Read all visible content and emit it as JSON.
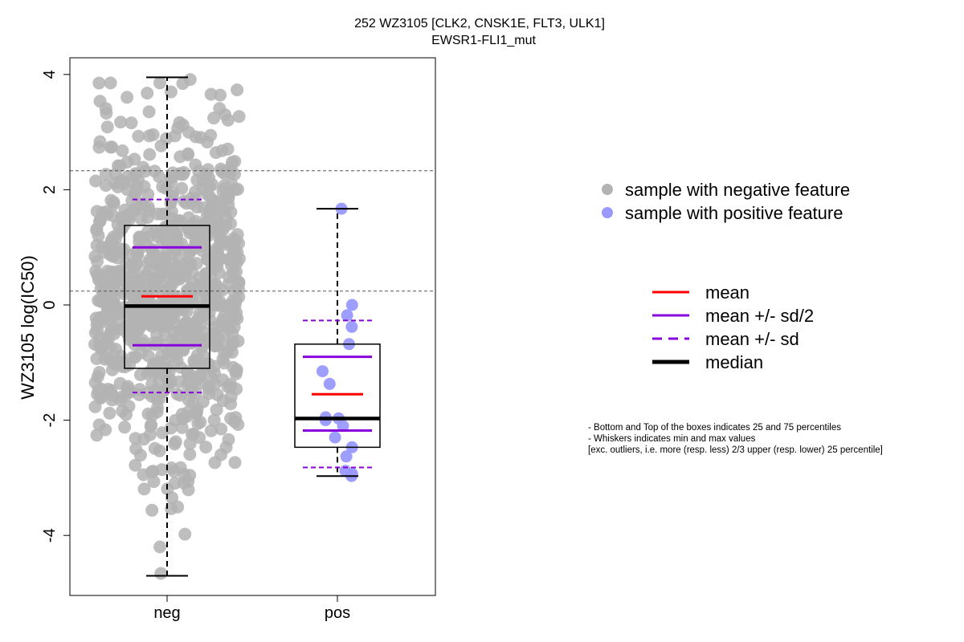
{
  "title": {
    "line1": "252 WZ3105 [CLK2, CNSK1E, FLT3, ULK1]",
    "line2": "EWSR1-FLI1_mut"
  },
  "chart_data": {
    "type": "boxplot",
    "ylabel": "WZ3105 log(IC50)",
    "xlabel": "",
    "categories": [
      "neg",
      "pos"
    ],
    "ylim": [
      -5,
      4.3
    ],
    "yticks": [
      -4,
      -2,
      0,
      2,
      4
    ],
    "reference_lines": [
      2.33,
      0.24
    ],
    "groups": [
      {
        "name": "neg",
        "color": "#b3b3b3",
        "n_points": 900,
        "min": -4.7,
        "q1": -1.1,
        "median": -0.02,
        "q3": 1.38,
        "max": 3.95,
        "mean": 0.15,
        "mean_plus_half_sd": 1.0,
        "mean_minus_half_sd": -0.7,
        "mean_plus_sd": 1.83,
        "mean_minus_sd": -1.52
      },
      {
        "name": "pos",
        "color": "#9999ff",
        "points": [
          1.67,
          0.0,
          -0.18,
          -0.38,
          -0.68,
          -1.15,
          -1.37,
          -1.97,
          -2.0,
          -2.1,
          -1.95,
          -2.3,
          -2.47,
          -2.63,
          -2.88,
          -2.93,
          -2.97
        ],
        "min": -2.97,
        "q1": -2.47,
        "median": -1.97,
        "q3": -0.68,
        "max": 1.67,
        "mean": -1.55,
        "mean_plus_half_sd": -0.9,
        "mean_minus_half_sd": -2.18,
        "mean_plus_sd": -0.27,
        "mean_minus_sd": -2.82
      }
    ],
    "point_legend": [
      {
        "label": "sample with negative feature",
        "color": "#b3b3b3"
      },
      {
        "label": "sample with positive feature",
        "color": "#9999ff"
      }
    ],
    "line_legend": [
      {
        "label": "mean",
        "color": "#ff0000",
        "style": "solid"
      },
      {
        "label": "mean +/- sd/2",
        "color": "#8800dd",
        "style": "solid"
      },
      {
        "label": "mean +/- sd",
        "color": "#8800dd",
        "style": "dashed"
      },
      {
        "label": "median",
        "color": "#000000",
        "style": "thick"
      }
    ],
    "notes": [
      "- Bottom and Top of the boxes indicates 25 and 75 percentiles",
      "- Whiskers indicates min and max values",
      "[exc. outliers, i.e. more (resp. less) 2/3 upper (resp. lower) 25 percentile]"
    ],
    "grid": false
  }
}
